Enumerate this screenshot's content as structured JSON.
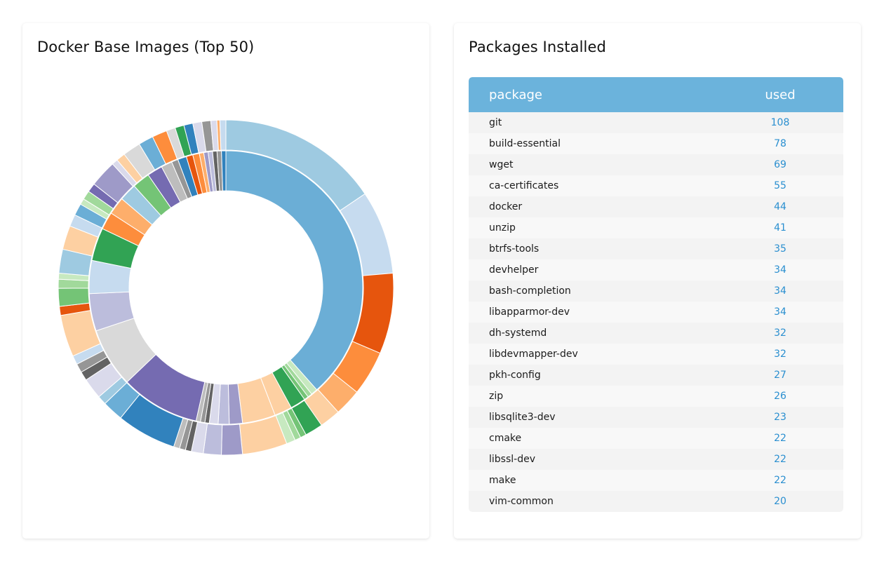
{
  "left_card": {
    "title": "Docker Base Images (Top 50)"
  },
  "right_card": {
    "title": "Packages Installed",
    "columns": [
      "package",
      "used"
    ],
    "rows": [
      {
        "package": "git",
        "used": "108"
      },
      {
        "package": "build-essential",
        "used": "78"
      },
      {
        "package": "wget",
        "used": "69"
      },
      {
        "package": "ca-certificates",
        "used": "55"
      },
      {
        "package": "docker",
        "used": "44"
      },
      {
        "package": "unzip",
        "used": "41"
      },
      {
        "package": "btrfs-tools",
        "used": "35"
      },
      {
        "package": "devhelper",
        "used": "34"
      },
      {
        "package": "bash-completion",
        "used": "34"
      },
      {
        "package": "libapparmor-dev",
        "used": "34"
      },
      {
        "package": "dh-systemd",
        "used": "32"
      },
      {
        "package": "libdevmapper-dev",
        "used": "32"
      },
      {
        "package": "pkh-config",
        "used": "27"
      },
      {
        "package": "zip",
        "used": "26"
      },
      {
        "package": "libsqlite3-dev",
        "used": "23"
      },
      {
        "package": "cmake",
        "used": "22"
      },
      {
        "package": "libssl-dev",
        "used": "22"
      },
      {
        "package": "make",
        "used": "22"
      },
      {
        "package": "vim-common",
        "used": "20"
      }
    ]
  },
  "chart_data": {
    "type": "sunburst",
    "title": "Docker Base Images (Top 50)",
    "note": "Unlabeled sunburst; values estimated as angular shares (degrees of 360).",
    "inner": [
      {
        "value": 148,
        "color": "#6baed6"
      },
      {
        "value": 3,
        "color": "#c7e9c0"
      },
      {
        "value": 2,
        "color": "#a1d99b"
      },
      {
        "value": 2,
        "color": "#74c476"
      },
      {
        "value": 7,
        "color": "#31a354"
      },
      {
        "value": 8,
        "color": "#fdd0a2"
      },
      {
        "value": 15,
        "color": "#fdd0a2"
      },
      {
        "value": 6,
        "color": "#9e9ac8"
      },
      {
        "value": 5,
        "color": "#bcbddc"
      },
      {
        "value": 4,
        "color": "#dadaeb"
      },
      {
        "value": 2,
        "color": "#636363"
      },
      {
        "value": 2,
        "color": "#969696"
      },
      {
        "value": 2,
        "color": "#bdbdbd"
      },
      {
        "value": 36,
        "color": "#756bb1"
      },
      {
        "value": 27,
        "color": "#d9d9d9"
      },
      {
        "value": 17,
        "color": "#bcbddc"
      },
      {
        "value": 15,
        "color": "#c6dbef"
      },
      {
        "value": 15,
        "color": "#31a354"
      },
      {
        "value": 8,
        "color": "#fd8d3c"
      },
      {
        "value": 8,
        "color": "#fdae6b"
      },
      {
        "value": 8,
        "color": "#9ecae1"
      },
      {
        "value": 8,
        "color": "#74c476"
      },
      {
        "value": 7,
        "color": "#756bb1"
      },
      {
        "value": 5,
        "color": "#bdbdbd"
      },
      {
        "value": 3,
        "color": "#969696"
      },
      {
        "value": 4,
        "color": "#3182bd"
      },
      {
        "value": 3,
        "color": "#e6550d"
      },
      {
        "value": 3,
        "color": "#fd8d3c"
      },
      {
        "value": 2,
        "color": "#fdae6b"
      },
      {
        "value": 2,
        "color": "#9e9ac8"
      },
      {
        "value": 2,
        "color": "#bcbddc"
      },
      {
        "value": 2,
        "color": "#636363"
      },
      {
        "value": 2,
        "color": "#969696"
      },
      {
        "value": 2,
        "color": "#3182bd"
      }
    ],
    "outer": [
      {
        "value": 54,
        "color": "#9ecae1"
      },
      {
        "value": 28,
        "color": "#c6dbef"
      },
      {
        "value": 27,
        "color": "#e6550d"
      },
      {
        "value": 15,
        "color": "#fd8d3c"
      },
      {
        "value": 9,
        "color": "#fdae6b"
      },
      {
        "value": 7,
        "color": "#fdd0a2"
      },
      {
        "value": 6,
        "color": "#31a354"
      },
      {
        "value": 2,
        "color": "#74c476"
      },
      {
        "value": 2,
        "color": "#a1d99b"
      },
      {
        "value": 3,
        "color": "#c7e9c0"
      },
      {
        "value": 15,
        "color": "#fdd0a2"
      },
      {
        "value": 7,
        "color": "#9e9ac8"
      },
      {
        "value": 6,
        "color": "#bcbddc"
      },
      {
        "value": 4,
        "color": "#dadaeb"
      },
      {
        "value": 2,
        "color": "#636363"
      },
      {
        "value": 2,
        "color": "#969696"
      },
      {
        "value": 2,
        "color": "#bdbdbd"
      },
      {
        "value": 20,
        "color": "#3182bd"
      },
      {
        "value": 7,
        "color": "#6baed6"
      },
      {
        "value": 3,
        "color": "#9ecae1"
      },
      {
        "value": 7,
        "color": "#dadaeb"
      },
      {
        "value": 3,
        "color": "#636363"
      },
      {
        "value": 3,
        "color": "#969696"
      },
      {
        "value": 3,
        "color": "#c6dbef"
      },
      {
        "value": 14,
        "color": "#fdd0a2"
      },
      {
        "value": 3,
        "color": "#e6550d"
      },
      {
        "value": 6,
        "color": "#74c476"
      },
      {
        "value": 3,
        "color": "#a1d99b"
      },
      {
        "value": 2,
        "color": "#c7e9c0"
      },
      {
        "value": 8,
        "color": "#9ecae1"
      },
      {
        "value": 8,
        "color": "#fdd0a2"
      },
      {
        "value": 4,
        "color": "#c6dbef"
      },
      {
        "value": 4,
        "color": "#6baed6"
      },
      {
        "value": 2,
        "color": "#c7e9c0"
      },
      {
        "value": 3,
        "color": "#a1d99b"
      },
      {
        "value": 3,
        "color": "#756bb1"
      },
      {
        "value": 9,
        "color": "#9e9ac8"
      },
      {
        "value": 2,
        "color": "#dadaeb"
      },
      {
        "value": 3,
        "color": "#fdd0a2"
      },
      {
        "value": 6,
        "color": "#d9d9d9"
      },
      {
        "value": 5,
        "color": "#6baed6"
      },
      {
        "value": 5,
        "color": "#fd8d3c"
      },
      {
        "value": 3,
        "color": "#d9d9d9"
      },
      {
        "value": 3,
        "color": "#31a354"
      },
      {
        "value": 3,
        "color": "#3182bd"
      },
      {
        "value": 3,
        "color": "#dadaeb"
      },
      {
        "value": 3,
        "color": "#969696"
      },
      {
        "value": 2,
        "color": "#dadaeb"
      },
      {
        "value": 1,
        "color": "#fdae6b"
      },
      {
        "value": 2,
        "color": "#c6dbef"
      }
    ]
  }
}
